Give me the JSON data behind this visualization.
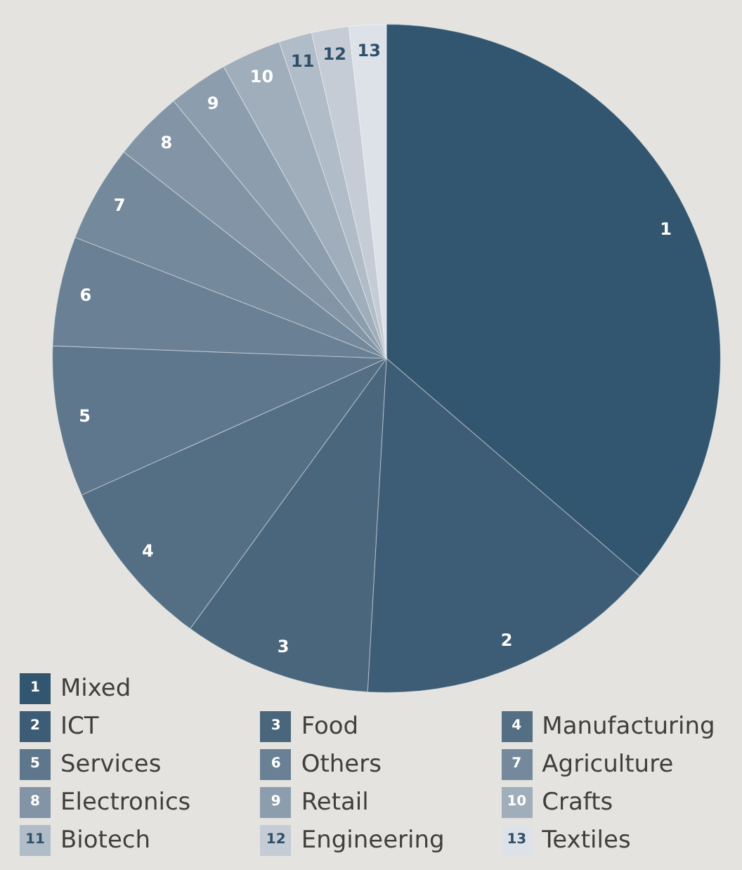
{
  "chart_data": {
    "type": "pie",
    "categories": [
      "Mixed",
      "ICT",
      "Food",
      "Manufacturing",
      "Services",
      "Others",
      "Agriculture",
      "Electronics",
      "Retail",
      "Crafts",
      "Biotech",
      "Engineering",
      "Textiles"
    ],
    "values": [
      36.3,
      14.6,
      9.1,
      8.3,
      7.3,
      5.3,
      4.7,
      3.4,
      2.9,
      2.9,
      1.6,
      1.8,
      1.8
    ],
    "colors": [
      "#32566f",
      "#3d5c75",
      "#4a667d",
      "#546e84",
      "#5e778c",
      "#6a8095",
      "#74899c",
      "#8294a5",
      "#8c9eae",
      "#a0adba",
      "#b0bcc8",
      "#c5ccd6",
      "#dde2e9"
    ],
    "annotations": [
      "1",
      "2",
      "3",
      "4",
      "5",
      "6",
      "7",
      "8",
      "9",
      "10",
      "11",
      "12",
      "13"
    ],
    "legend": "bottom"
  }
}
